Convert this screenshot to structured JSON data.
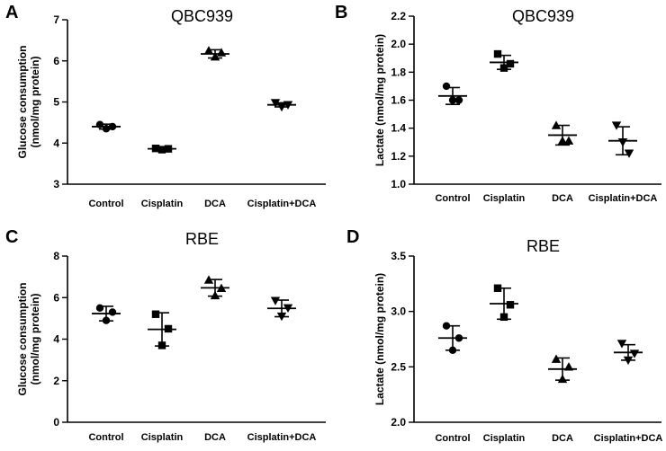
{
  "chart_data": [
    {
      "panel": "A",
      "type": "scatter",
      "title": "QBC939",
      "ylabel_lines": [
        "Glucose consumption",
        "(nmol/mg protein)"
      ],
      "categories": [
        "Control",
        "Cisplatin",
        "DCA",
        "Cisplatin+DCA"
      ],
      "ylim": [
        3,
        7
      ],
      "yticks": [
        "3",
        "4",
        "5",
        "6",
        "7"
      ],
      "points": [
        [
          4.45,
          4.35,
          4.4
        ],
        [
          3.87,
          3.84,
          3.86
        ],
        [
          6.25,
          6.1,
          6.2
        ],
        [
          4.98,
          4.88,
          4.93
        ]
      ],
      "mean": [
        4.4,
        3.86,
        6.17,
        4.93
      ],
      "sd": [
        0.06,
        0.03,
        0.1,
        0.05
      ]
    },
    {
      "panel": "B",
      "type": "scatter",
      "title": "QBC939",
      "ylabel_lines": [
        "Lactate (nmol/mg protein)"
      ],
      "categories": [
        "Control",
        "Cisplatin",
        "DCA",
        "Cisplatin+DCA"
      ],
      "ylim": [
        1.0,
        2.2
      ],
      "yticks": [
        "1.0",
        "1.2",
        "1.4",
        "1.6",
        "1.8",
        "2.0",
        "2.2"
      ],
      "points": [
        [
          1.7,
          1.6,
          1.6
        ],
        [
          1.93,
          1.83,
          1.86
        ],
        [
          1.42,
          1.31,
          1.31
        ],
        [
          1.42,
          1.3,
          1.22
        ]
      ],
      "mean": [
        1.63,
        1.87,
        1.35,
        1.31
      ],
      "sd": [
        0.06,
        0.05,
        0.07,
        0.1
      ]
    },
    {
      "panel": "C",
      "type": "scatter",
      "title": "RBE",
      "ylabel_lines": [
        "Glucose consumption",
        "(nmol/mg protein)"
      ],
      "categories": [
        "Control",
        "Cisplatin",
        "DCA",
        "Cisplatin+DCA"
      ],
      "ylim": [
        0,
        8
      ],
      "yticks": [
        "0",
        "2",
        "4",
        "6",
        "8"
      ],
      "points": [
        [
          5.5,
          4.9,
          5.3
        ],
        [
          5.2,
          3.7,
          4.5
        ],
        [
          6.85,
          6.1,
          6.45
        ],
        [
          5.85,
          5.1,
          5.5
        ]
      ],
      "mean": [
        5.23,
        4.47,
        6.47,
        5.48
      ],
      "sd": [
        0.35,
        0.8,
        0.4,
        0.4
      ]
    },
    {
      "panel": "D",
      "type": "scatter",
      "title": "RBE",
      "ylabel_lines": [
        "Lactate (nmol/mg protein)"
      ],
      "categories": [
        "Control",
        "Cisplatin",
        "DCA",
        "Cisplatin+DCA"
      ],
      "ylim": [
        2.0,
        3.5
      ],
      "yticks": [
        "2.0",
        "2.5",
        "3.0",
        "3.5"
      ],
      "points": [
        [
          2.87,
          2.65,
          2.76
        ],
        [
          3.21,
          2.95,
          3.06
        ],
        [
          2.57,
          2.39,
          2.5
        ],
        [
          2.71,
          2.56,
          2.62
        ]
      ],
      "mean": [
        2.76,
        3.07,
        2.48,
        2.63
      ],
      "sd": [
        0.11,
        0.14,
        0.1,
        0.07
      ]
    }
  ],
  "marker_shapes": [
    "circle",
    "square",
    "triangle-up",
    "triangle-down"
  ]
}
